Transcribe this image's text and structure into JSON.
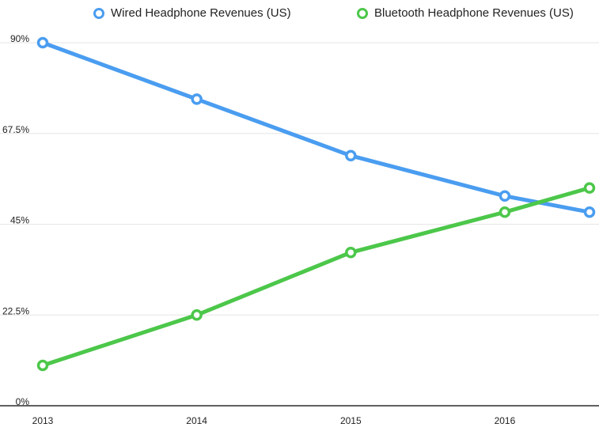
{
  "chart_data": {
    "type": "line",
    "title": "",
    "xlabel": "",
    "ylabel": "",
    "x": [
      2013,
      2014,
      2015,
      2016,
      2016.55
    ],
    "x_tick_labels": [
      "2013",
      "2014",
      "2015",
      "2016"
    ],
    "x_tick_values": [
      2013,
      2014,
      2015,
      2016
    ],
    "y_tick_labels": [
      "90%",
      "67.5%",
      "45%",
      "22.5%",
      "0%"
    ],
    "y_tick_values": [
      90,
      67.5,
      45,
      22.5,
      0
    ],
    "ylim": [
      0,
      90
    ],
    "grid": true,
    "legend_position": "top",
    "series": [
      {
        "name": "Wired Headphone Revenues (US)",
        "color": "#4a9df0",
        "values": [
          90,
          76,
          62,
          52,
          48
        ]
      },
      {
        "name": "Bluetooth Headphone Revenues (US)",
        "color": "#4cc74a",
        "values": [
          10,
          22.5,
          38,
          48,
          54
        ]
      }
    ]
  }
}
